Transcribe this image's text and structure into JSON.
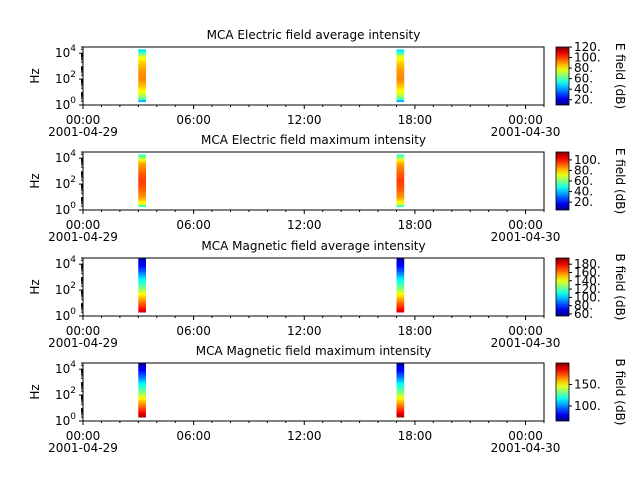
{
  "chart_data": [
    {
      "type": "heatmap",
      "title": "MCA  Electric field average intensity",
      "ylabel": "Hz",
      "y_scale": "log",
      "ylim": [
        1,
        30000
      ],
      "y_ticks": [
        {
          "base": "10",
          "exp": "0"
        },
        {
          "base": "10",
          "exp": "2"
        },
        {
          "base": "10",
          "exp": "4"
        }
      ],
      "x_ticks": [
        "00:00",
        "06:00",
        "12:00",
        "18:00",
        "00:00"
      ],
      "x_range": [
        "2001-04-29 00:00",
        "2001-04-30 01:00"
      ],
      "x_dates": [
        "2001-04-29",
        "2001-04-30"
      ],
      "colorbar": {
        "label": "E field (dB)",
        "range": [
          10,
          120
        ],
        "ticks": [
          "20.",
          "40.",
          "60.",
          "80.",
          "100.",
          "120."
        ]
      },
      "data_segments": [
        {
          "start": "2001-04-29 03:00",
          "end": "2001-04-29 03:25"
        },
        {
          "start": "2001-04-29 17:00",
          "end": "2001-04-29 17:25"
        }
      ],
      "spectrum": [
        [
          1.8,
          35
        ],
        [
          3,
          60
        ],
        [
          8,
          75
        ],
        [
          30,
          85
        ],
        [
          100,
          92
        ],
        [
          400,
          90
        ],
        [
          1500,
          85
        ],
        [
          5000,
          78
        ],
        [
          20000,
          45
        ]
      ]
    },
    {
      "type": "heatmap",
      "title": "MCA  Electric field maximum intensity",
      "ylabel": "Hz",
      "y_scale": "log",
      "ylim": [
        1,
        30000
      ],
      "y_ticks": [
        {
          "base": "10",
          "exp": "0"
        },
        {
          "base": "10",
          "exp": "2"
        },
        {
          "base": "10",
          "exp": "4"
        }
      ],
      "x_ticks": [
        "00:00",
        "06:00",
        "12:00",
        "18:00",
        "00:00"
      ],
      "x_range": [
        "2001-04-29 00:00",
        "2001-04-30 01:00"
      ],
      "x_dates": [
        "2001-04-29",
        "2001-04-30"
      ],
      "colorbar": {
        "label": "E field (dB)",
        "range": [
          5,
          115
        ],
        "ticks": [
          "20.",
          "40.",
          "60.",
          "80.",
          "100."
        ]
      },
      "data_segments": [
        {
          "start": "2001-04-29 03:00",
          "end": "2001-04-29 03:25"
        },
        {
          "start": "2001-04-29 17:00",
          "end": "2001-04-29 17:25"
        }
      ],
      "spectrum": [
        [
          1.8,
          45
        ],
        [
          3,
          70
        ],
        [
          10,
          85
        ],
        [
          50,
          92
        ],
        [
          200,
          95
        ],
        [
          1000,
          90
        ],
        [
          5000,
          82
        ],
        [
          20000,
          50
        ]
      ]
    },
    {
      "type": "heatmap",
      "title": "MCA  Magnetic field average intensity",
      "ylabel": "Hz",
      "y_scale": "log",
      "ylim": [
        1,
        30000
      ],
      "y_ticks": [
        {
          "base": "10",
          "exp": "0"
        },
        {
          "base": "10",
          "exp": "2"
        },
        {
          "base": "10",
          "exp": "4"
        }
      ],
      "x_ticks": [
        "00:00",
        "06:00",
        "12:00",
        "18:00",
        "00:00"
      ],
      "x_range": [
        "2001-04-29 00:00",
        "2001-04-30 01:00"
      ],
      "x_dates": [
        "2001-04-29",
        "2001-04-30"
      ],
      "colorbar": {
        "label": "B field (dB)",
        "range": [
          55,
          195
        ],
        "ticks": [
          "60.",
          "80.",
          "100.",
          "120.",
          "140.",
          "160.",
          "180."
        ]
      },
      "data_segments": [
        {
          "start": "2001-04-29 03:00",
          "end": "2001-04-29 03:25"
        },
        {
          "start": "2001-04-29 17:00",
          "end": "2001-04-29 17:25"
        }
      ],
      "spectrum": [
        [
          2,
          185
        ],
        [
          6,
          170
        ],
        [
          30,
          150
        ],
        [
          150,
          125
        ],
        [
          800,
          105
        ],
        [
          3000,
          85
        ],
        [
          10000,
          70
        ],
        [
          30000,
          62
        ]
      ]
    },
    {
      "type": "heatmap",
      "title": "MCA  Magnetic field maximum intensity",
      "ylabel": "Hz",
      "y_scale": "log",
      "ylim": [
        1,
        30000
      ],
      "y_ticks": [
        {
          "base": "10",
          "exp": "0"
        },
        {
          "base": "10",
          "exp": "2"
        },
        {
          "base": "10",
          "exp": "4"
        }
      ],
      "x_ticks": [
        "00:00",
        "06:00",
        "12:00",
        "18:00",
        "00:00"
      ],
      "x_range": [
        "2001-04-29 00:00",
        "2001-04-30 01:00"
      ],
      "x_dates": [
        "2001-04-29",
        "2001-04-30"
      ],
      "colorbar": {
        "label": "B field (dB)",
        "range": [
          65,
          200
        ],
        "ticks": [
          "100.",
          "150."
        ]
      },
      "data_segments": [
        {
          "start": "2001-04-29 03:00",
          "end": "2001-04-29 03:25"
        },
        {
          "start": "2001-04-29 17:00",
          "end": "2001-04-29 17:25"
        }
      ],
      "spectrum": [
        [
          2,
          195
        ],
        [
          6,
          180
        ],
        [
          30,
          160
        ],
        [
          150,
          135
        ],
        [
          800,
          115
        ],
        [
          3000,
          95
        ],
        [
          10000,
          80
        ],
        [
          30000,
          70
        ]
      ]
    }
  ]
}
